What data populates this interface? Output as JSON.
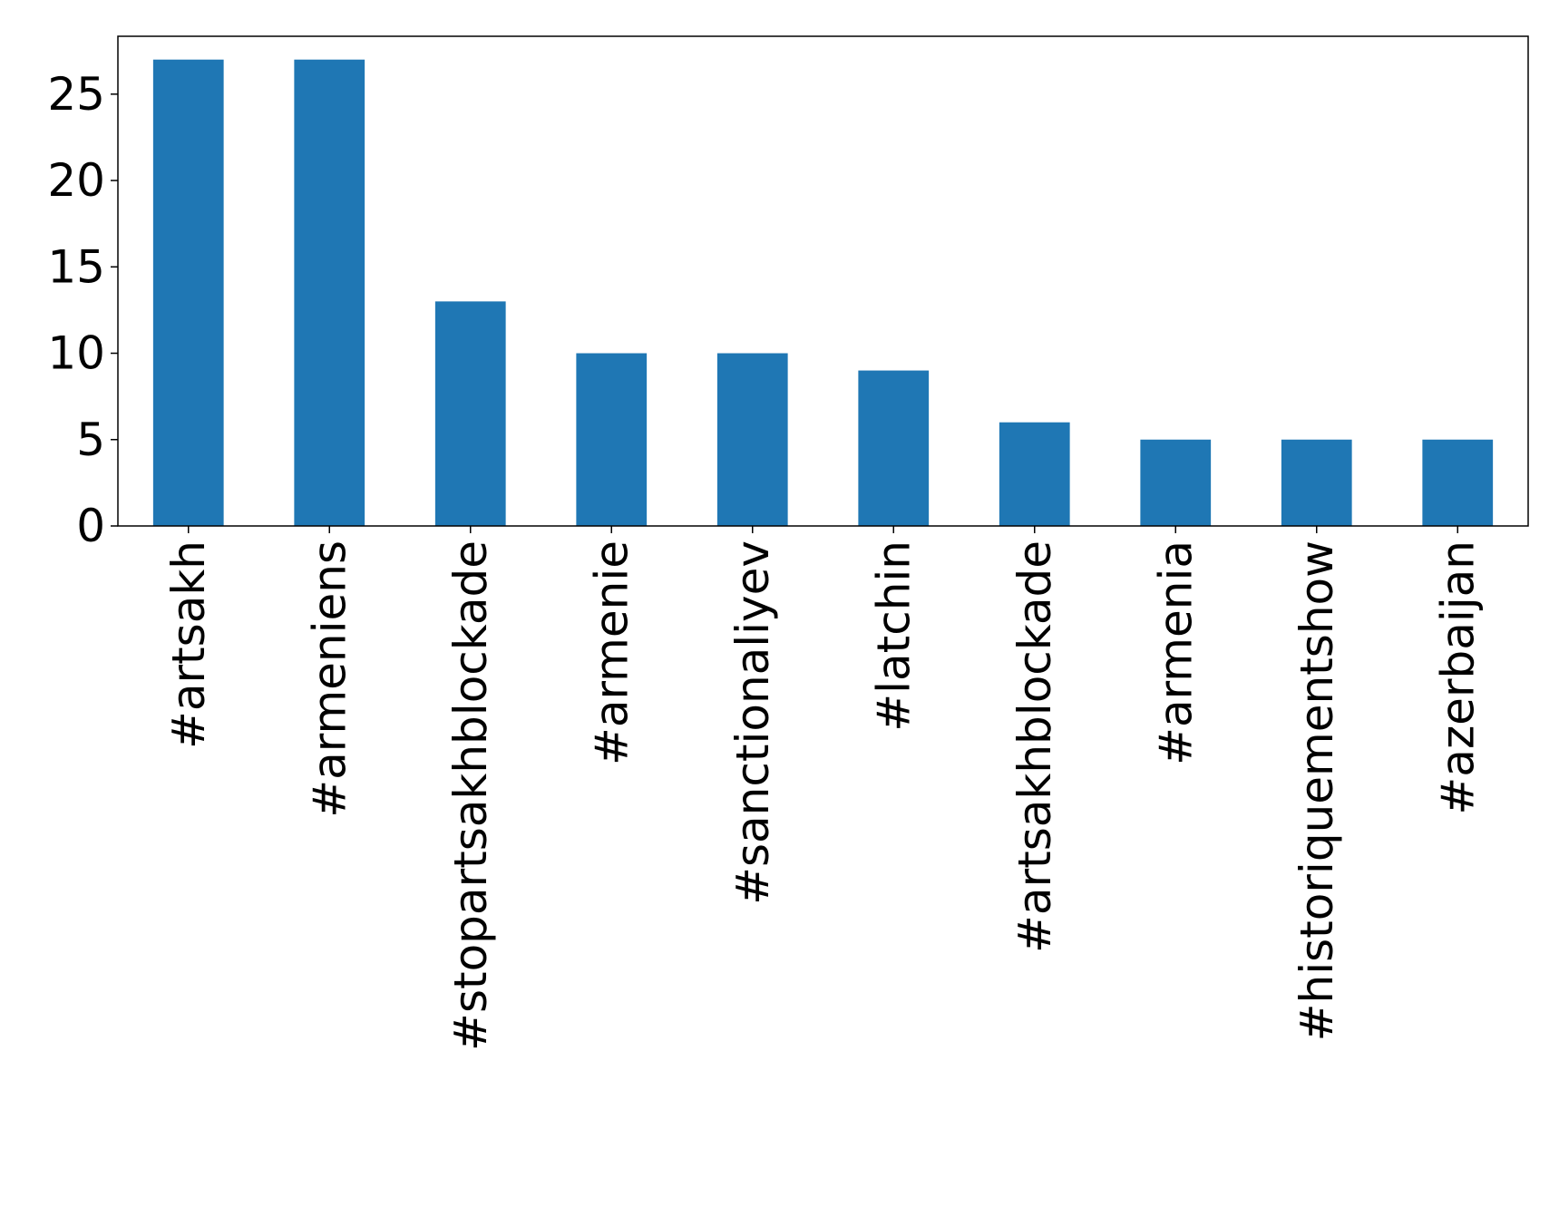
{
  "chart_data": {
    "type": "bar",
    "categories": [
      "#artsakh",
      "#armeniens",
      "#stopartsakhblockade",
      "#armenie",
      "#sanctionaliyev",
      "#latchin",
      "#artsakhblockade",
      "#armenia",
      "#historiquementshow",
      "#azerbaijan"
    ],
    "values": [
      27,
      27,
      13,
      10,
      10,
      9,
      6,
      5,
      5,
      5
    ],
    "ylim": [
      0,
      28.35
    ],
    "yticks": [
      0,
      5,
      10,
      15,
      20,
      25
    ],
    "bar_color": "#1f77b4",
    "grid": false,
    "legend": "none"
  }
}
